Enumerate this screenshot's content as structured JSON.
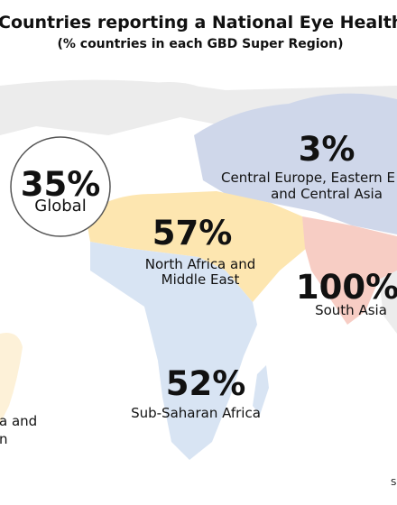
{
  "header": {
    "title": "Countries reporting a National Eye Health Pla",
    "subtitle": "(% countries in each GBD Super Region)"
  },
  "regions": [
    {
      "value": "35%",
      "label": [
        "Global"
      ]
    },
    {
      "value": "3%",
      "label": [
        "Central Europe, Eastern E",
        "and Central Asia"
      ]
    },
    {
      "value": "57%",
      "label": [
        "North Africa and",
        "Middle East"
      ]
    },
    {
      "value": "100%",
      "label": [
        "South Asia"
      ]
    },
    {
      "value": "52%",
      "label": [
        "Sub-Saharan Africa"
      ]
    },
    {
      "label": [
        "a and",
        "n"
      ]
    }
  ],
  "footer": {
    "source": "S"
  }
}
